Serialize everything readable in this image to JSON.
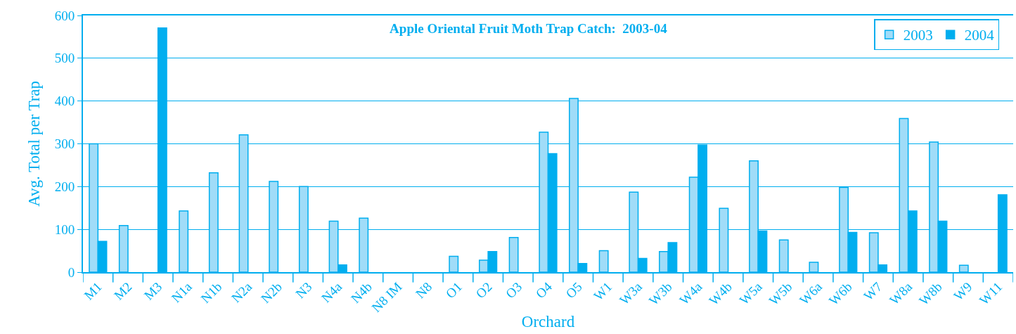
{
  "chart_data": {
    "type": "bar",
    "title": "Apple Oriental Fruit Moth Trap Catch:  2003-04",
    "xlabel": "Orchard",
    "ylabel": "Avg. Total per Trap",
    "categories": [
      "M1",
      "M2",
      "M3",
      "N1a",
      "N1b",
      "N2a",
      "N2b",
      "N3",
      "N4a",
      "N4b",
      "N8 IM",
      "N8",
      "O1",
      "O2",
      "O3",
      "O4",
      "O5",
      "W1",
      "W3a",
      "W3b",
      "W4a",
      "W4b",
      "W5a",
      "W5b",
      "W6a",
      "W6b",
      "W7",
      "W8a",
      "W8b",
      "W9",
      "W11"
    ],
    "series": [
      {
        "name": "2003",
        "color": "#a0dcf8",
        "values": [
          300,
          109,
          0,
          143,
          232,
          321,
          212,
          200,
          119,
          126,
          0,
          0,
          37,
          28,
          81,
          327,
          406,
          50,
          187,
          48,
          222,
          149,
          260,
          75,
          23,
          198,
          92,
          359,
          304,
          16,
          0
        ]
      },
      {
        "name": "2004",
        "color": "#00aeef",
        "values": [
          72,
          0,
          571,
          0,
          0,
          0,
          0,
          0,
          17,
          0,
          0,
          0,
          0,
          48,
          0,
          277,
          20,
          0,
          32,
          69,
          297,
          0,
          96,
          0,
          0,
          93,
          17,
          143,
          119,
          0,
          181
        ]
      }
    ],
    "ylim": [
      0,
      600
    ],
    "yticks": [
      0,
      100,
      200,
      300,
      400,
      500,
      600
    ],
    "grid": "y",
    "legend": "top right"
  }
}
